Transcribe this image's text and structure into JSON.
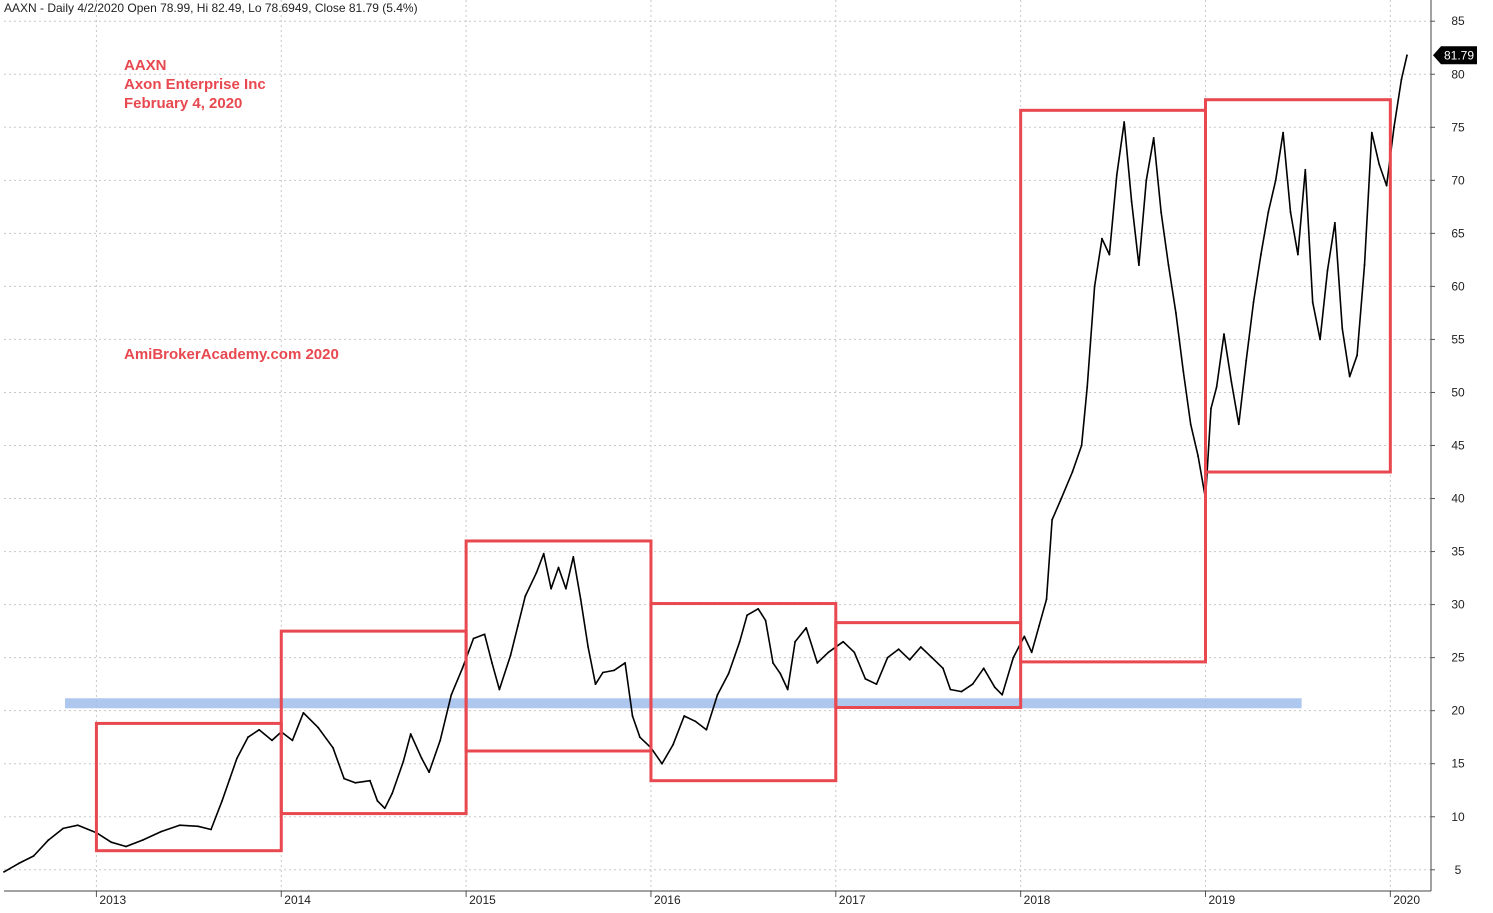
{
  "header": {
    "text": "AAXN - Daily 4/2/2020 Open 78.99, Hi 82.49, Lo 78.6949, Close 81.79 (5.4%)"
  },
  "annotation": {
    "line1": "AAXN",
    "line2": "Axon Enterprise Inc",
    "line3": "February 4, 2020",
    "brand": "AmiBrokerAcademy.com   2020"
  },
  "price_badge": "81.79",
  "colors": {
    "price_line": "#000000",
    "box": "#e8484f",
    "support_band": "#9fbdeb",
    "grid": "#c8c8c8",
    "badge_bg": "#000000",
    "badge_text": "#ffffff"
  },
  "chart_data": {
    "type": "line",
    "title": "",
    "xlabel": "",
    "ylabel": "",
    "ylim": [
      3,
      87
    ],
    "y_ticks": [
      5,
      10,
      15,
      20,
      25,
      30,
      35,
      40,
      45,
      50,
      55,
      60,
      65,
      70,
      75,
      80,
      85
    ],
    "x_ticks": [
      {
        "label": "2013",
        "x": 2013.0
      },
      {
        "label": "2014",
        "x": 2014.0
      },
      {
        "label": "2015",
        "x": 2015.0
      },
      {
        "label": "2016",
        "x": 2016.0
      },
      {
        "label": "2017",
        "x": 2017.0
      },
      {
        "label": "2018",
        "x": 2018.0
      },
      {
        "label": "2019",
        "x": 2019.0
      },
      {
        "label": "2020",
        "x": 2020.0
      }
    ],
    "xlim": [
      2012.5,
      2020.22
    ],
    "grid": true,
    "series": [
      {
        "points": [
          [
            2012.5,
            4.8
          ],
          [
            2012.58,
            5.6
          ],
          [
            2012.66,
            6.3
          ],
          [
            2012.74,
            7.8
          ],
          [
            2012.82,
            8.9
          ],
          [
            2012.9,
            9.2
          ],
          [
            2013.0,
            8.5
          ],
          [
            2013.08,
            7.6
          ],
          [
            2013.16,
            7.2
          ],
          [
            2013.25,
            7.8
          ],
          [
            2013.35,
            8.6
          ],
          [
            2013.45,
            9.2
          ],
          [
            2013.55,
            9.1
          ],
          [
            2013.62,
            8.8
          ],
          [
            2013.68,
            11.5
          ],
          [
            2013.72,
            13.5
          ],
          [
            2013.76,
            15.5
          ],
          [
            2013.82,
            17.5
          ],
          [
            2013.88,
            18.2
          ],
          [
            2013.95,
            17.2
          ],
          [
            2014.0,
            18.0
          ],
          [
            2014.06,
            17.2
          ],
          [
            2014.12,
            19.8
          ],
          [
            2014.2,
            18.4
          ],
          [
            2014.28,
            16.5
          ],
          [
            2014.34,
            13.6
          ],
          [
            2014.4,
            13.2
          ],
          [
            2014.48,
            13.4
          ],
          [
            2014.52,
            11.5
          ],
          [
            2014.56,
            10.8
          ],
          [
            2014.6,
            12.2
          ],
          [
            2014.66,
            15.2
          ],
          [
            2014.7,
            17.8
          ],
          [
            2014.76,
            15.5
          ],
          [
            2014.8,
            14.2
          ],
          [
            2014.86,
            17.2
          ],
          [
            2014.92,
            21.5
          ],
          [
            2014.98,
            24.0
          ],
          [
            2015.04,
            26.8
          ],
          [
            2015.1,
            27.2
          ],
          [
            2015.14,
            24.5
          ],
          [
            2015.18,
            22.0
          ],
          [
            2015.24,
            25.2
          ],
          [
            2015.28,
            28.0
          ],
          [
            2015.32,
            30.8
          ],
          [
            2015.38,
            33.0
          ],
          [
            2015.42,
            34.8
          ],
          [
            2015.46,
            31.5
          ],
          [
            2015.5,
            33.5
          ],
          [
            2015.54,
            31.5
          ],
          [
            2015.58,
            34.5
          ],
          [
            2015.62,
            30.5
          ],
          [
            2015.66,
            26.0
          ],
          [
            2015.7,
            22.5
          ],
          [
            2015.74,
            23.6
          ],
          [
            2015.8,
            23.8
          ],
          [
            2015.86,
            24.5
          ],
          [
            2015.9,
            19.5
          ],
          [
            2015.94,
            17.5
          ],
          [
            2016.0,
            16.5
          ],
          [
            2016.06,
            15.0
          ],
          [
            2016.12,
            16.8
          ],
          [
            2016.18,
            19.5
          ],
          [
            2016.24,
            19.0
          ],
          [
            2016.3,
            18.2
          ],
          [
            2016.36,
            21.5
          ],
          [
            2016.42,
            23.5
          ],
          [
            2016.48,
            26.5
          ],
          [
            2016.52,
            29.0
          ],
          [
            2016.58,
            29.6
          ],
          [
            2016.62,
            28.5
          ],
          [
            2016.66,
            24.5
          ],
          [
            2016.7,
            23.5
          ],
          [
            2016.74,
            22.0
          ],
          [
            2016.78,
            26.5
          ],
          [
            2016.84,
            27.8
          ],
          [
            2016.9,
            24.5
          ],
          [
            2016.96,
            25.5
          ],
          [
            2017.04,
            26.5
          ],
          [
            2017.1,
            25.5
          ],
          [
            2017.16,
            23.0
          ],
          [
            2017.22,
            22.5
          ],
          [
            2017.28,
            25.0
          ],
          [
            2017.34,
            25.8
          ],
          [
            2017.4,
            24.8
          ],
          [
            2017.46,
            26.0
          ],
          [
            2017.52,
            25.0
          ],
          [
            2017.58,
            24.0
          ],
          [
            2017.62,
            22.0
          ],
          [
            2017.68,
            21.8
          ],
          [
            2017.74,
            22.5
          ],
          [
            2017.8,
            24.0
          ],
          [
            2017.86,
            22.2
          ],
          [
            2017.9,
            21.5
          ],
          [
            2017.96,
            25.0
          ],
          [
            2018.02,
            27.0
          ],
          [
            2018.06,
            25.5
          ],
          [
            2018.1,
            28.0
          ],
          [
            2018.14,
            30.5
          ],
          [
            2018.17,
            38.0
          ],
          [
            2018.22,
            40.0
          ],
          [
            2018.28,
            42.5
          ],
          [
            2018.33,
            45.0
          ],
          [
            2018.36,
            50.5
          ],
          [
            2018.4,
            60.0
          ],
          [
            2018.44,
            64.5
          ],
          [
            2018.48,
            63.0
          ],
          [
            2018.52,
            70.5
          ],
          [
            2018.56,
            75.5
          ],
          [
            2018.6,
            68.0
          ],
          [
            2018.64,
            62.0
          ],
          [
            2018.68,
            70.0
          ],
          [
            2018.72,
            74.0
          ],
          [
            2018.76,
            67.0
          ],
          [
            2018.8,
            62.0
          ],
          [
            2018.84,
            57.5
          ],
          [
            2018.88,
            52.0
          ],
          [
            2018.92,
            47.0
          ],
          [
            2018.96,
            44.0
          ],
          [
            2019.0,
            40.0
          ],
          [
            2019.03,
            48.5
          ],
          [
            2019.06,
            50.5
          ],
          [
            2019.1,
            55.5
          ],
          [
            2019.14,
            51.0
          ],
          [
            2019.18,
            47.0
          ],
          [
            2019.22,
            53.0
          ],
          [
            2019.26,
            58.5
          ],
          [
            2019.3,
            63.0
          ],
          [
            2019.34,
            67.0
          ],
          [
            2019.38,
            70.0
          ],
          [
            2019.42,
            74.5
          ],
          [
            2019.46,
            67.0
          ],
          [
            2019.5,
            63.0
          ],
          [
            2019.54,
            71.0
          ],
          [
            2019.58,
            58.5
          ],
          [
            2019.62,
            55.0
          ],
          [
            2019.66,
            61.5
          ],
          [
            2019.7,
            66.0
          ],
          [
            2019.74,
            56.0
          ],
          [
            2019.78,
            51.5
          ],
          [
            2019.82,
            53.5
          ],
          [
            2019.86,
            62.0
          ],
          [
            2019.9,
            74.5
          ],
          [
            2019.94,
            71.5
          ],
          [
            2019.98,
            69.5
          ],
          [
            2020.02,
            75.0
          ],
          [
            2020.06,
            79.5
          ],
          [
            2020.09,
            81.79
          ]
        ]
      }
    ],
    "boxes": [
      {
        "x0": 2013.0,
        "x1": 2014.0,
        "y0": 6.8,
        "y1": 18.8
      },
      {
        "x0": 2014.0,
        "x1": 2015.0,
        "y0": 10.3,
        "y1": 27.5
      },
      {
        "x0": 2015.0,
        "x1": 2016.0,
        "y0": 16.2,
        "y1": 36.0
      },
      {
        "x0": 2016.0,
        "x1": 2017.0,
        "y0": 13.4,
        "y1": 30.1
      },
      {
        "x0": 2017.0,
        "x1": 2018.0,
        "y0": 20.3,
        "y1": 28.3
      },
      {
        "x0": 2018.0,
        "x1": 2019.0,
        "y0": 24.6,
        "y1": 76.6
      },
      {
        "x0": 2019.0,
        "x1": 2020.0,
        "y0": 42.5,
        "y1": 77.6
      }
    ],
    "support_band": {
      "x0": 2012.83,
      "x1": 2019.52,
      "y": 20.7
    }
  }
}
